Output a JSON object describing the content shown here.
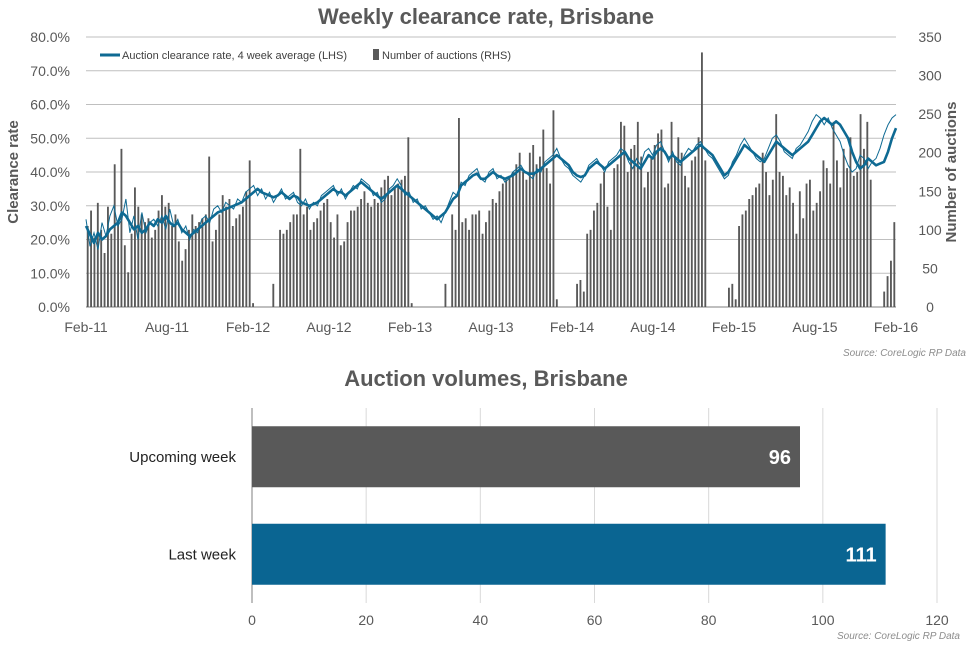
{
  "chart_data": [
    {
      "type": "bar+line",
      "title": "Weekly clearance rate, Brisbane",
      "ylabel_left": "Clearance rate",
      "ylabel_right": "Number of auctions",
      "ylim_left": [
        0,
        80
      ],
      "ylim_right": [
        0,
        350
      ],
      "y_ticks_left": [
        "0.0%",
        "10.0%",
        "20.0%",
        "30.0%",
        "40.0%",
        "50.0%",
        "60.0%",
        "70.0%",
        "80.0%"
      ],
      "y_ticks_right": [
        "0",
        "50",
        "100",
        "150",
        "200",
        "250",
        "300",
        "350"
      ],
      "x_ticks": [
        "Feb-11",
        "Aug-11",
        "Feb-12",
        "Aug-12",
        "Feb-13",
        "Aug-13",
        "Feb-14",
        "Aug-14",
        "Feb-15",
        "Aug-15",
        "Feb-16"
      ],
      "legend": [
        "Auction clearance rate, 4 week average (LHS)",
        "Number of auctions (RHS)"
      ],
      "legend_position": "top-left",
      "series_bars_auctions_rhs": [
        105,
        125,
        90,
        135,
        100,
        70,
        130,
        95,
        185,
        110,
        205,
        80,
        45,
        95,
        155,
        130,
        120,
        110,
        115,
        90,
        100,
        125,
        145,
        130,
        135,
        105,
        120,
        85,
        60,
        75,
        100,
        120,
        105,
        110,
        115,
        120,
        195,
        85,
        100,
        120,
        145,
        130,
        140,
        105,
        115,
        120,
        130,
        150,
        190,
        5,
        0,
        0,
        0,
        0,
        0,
        30,
        0,
        100,
        95,
        100,
        110,
        120,
        120,
        205,
        120,
        130,
        100,
        110,
        115,
        125,
        135,
        140,
        110,
        90,
        120,
        80,
        85,
        110,
        125,
        125,
        130,
        140,
        150,
        135,
        130,
        140,
        135,
        155,
        165,
        170,
        145,
        155,
        160,
        165,
        170,
        220,
        5,
        0,
        0,
        0,
        0,
        0,
        0,
        0,
        0,
        0,
        30,
        0,
        120,
        100,
        245,
        110,
        115,
        100,
        120,
        120,
        125,
        95,
        110,
        125,
        140,
        135,
        150,
        160,
        165,
        170,
        175,
        185,
        200,
        175,
        165,
        200,
        210,
        185,
        195,
        230,
        180,
        160,
        255,
        10,
        0,
        0,
        0,
        0,
        0,
        30,
        35,
        20,
        95,
        100,
        125,
        135,
        160,
        175,
        130,
        100,
        180,
        185,
        240,
        235,
        175,
        205,
        210,
        240,
        195,
        155,
        175,
        195,
        210,
        225,
        230,
        155,
        160,
        240,
        195,
        220,
        200,
        170,
        155,
        190,
        195,
        220,
        330,
        190,
        0,
        0,
        0,
        0,
        0,
        0,
        25,
        30,
        10,
        105,
        120,
        125,
        140,
        145,
        155,
        160,
        200,
        175,
        145,
        165,
        250,
        175,
        170,
        145,
        155,
        135,
        95,
        150,
        115,
        160,
        165,
        125,
        135,
        150,
        190,
        180,
        160,
        240,
        190,
        155,
        205,
        180,
        220,
        170,
        175,
        250,
        205,
        240,
        165,
        0,
        0,
        0,
        20,
        40,
        60,
        110
      ],
      "series_line_clearance_lhs": [
        24,
        21.5,
        19,
        22,
        20,
        21,
        23,
        24,
        25,
        28,
        27,
        25,
        23,
        24,
        22,
        23,
        25,
        24,
        26,
        25,
        27,
        25,
        24,
        25,
        23,
        22,
        21,
        22,
        23,
        24,
        25,
        26,
        27,
        28,
        28.5,
        29,
        29.5,
        30,
        30.5,
        31,
        32,
        33,
        34,
        35,
        34,
        33.5,
        33,
        32.5,
        33,
        34,
        33,
        32,
        33,
        32.5,
        31,
        30.5,
        30,
        30.5,
        31,
        32,
        33,
        34,
        35,
        34,
        34,
        33,
        34,
        35,
        36,
        37,
        36,
        35,
        34,
        33,
        32,
        33,
        34,
        35,
        36,
        35,
        34,
        33,
        32,
        31,
        30,
        29,
        28,
        27,
        26,
        27,
        28,
        30,
        32,
        33,
        36,
        37,
        38,
        39,
        39.5,
        38,
        38,
        39,
        40,
        39,
        38.5,
        38,
        38.5,
        39,
        40,
        41,
        40,
        39.5,
        39.5,
        40,
        41,
        42,
        43,
        44,
        45,
        44,
        43,
        42,
        40,
        39,
        38.5,
        39,
        41,
        42,
        43,
        42,
        41,
        42,
        43,
        44,
        45,
        46,
        44,
        43,
        42,
        41,
        43,
        45,
        44,
        46,
        47,
        46,
        44,
        45,
        44,
        43,
        44,
        45,
        46,
        47,
        48,
        47,
        46,
        45,
        43,
        41,
        39,
        40,
        42,
        44,
        46,
        48,
        47,
        46,
        45,
        44,
        43,
        45,
        47,
        49,
        48,
        47,
        46,
        45,
        46,
        47,
        48,
        49,
        51,
        53,
        55,
        56,
        55,
        54,
        55,
        54,
        52,
        50,
        46,
        43,
        41,
        42,
        44,
        43,
        42,
        42.5,
        43,
        46,
        50,
        53
      ],
      "series_line_clearance_weekly_lhs": [
        26,
        18,
        22,
        17,
        25,
        21,
        27,
        30,
        24,
        26,
        32,
        22,
        27,
        20,
        28,
        22,
        25,
        26,
        24,
        27,
        23,
        29,
        24,
        26,
        22,
        24,
        20,
        23,
        22,
        26,
        27,
        25,
        29,
        30,
        28,
        31,
        30,
        29,
        32,
        31,
        34,
        35,
        36,
        33,
        35,
        32,
        34,
        31,
        33,
        35,
        32,
        33,
        34,
        31,
        30,
        32,
        29,
        31,
        30,
        33,
        34,
        35,
        36,
        33,
        35,
        32,
        34,
        36,
        35,
        38,
        37,
        36,
        33,
        34,
        31,
        32,
        35,
        36,
        38,
        36,
        33,
        34,
        31,
        32,
        29,
        30,
        28,
        26,
        27,
        25,
        28,
        31,
        34,
        33,
        37,
        36,
        39,
        40,
        41,
        38,
        37,
        40,
        41,
        38,
        39,
        37,
        38,
        40,
        41,
        42,
        40,
        39,
        38,
        41,
        40,
        43,
        44,
        45,
        47,
        44,
        42,
        41,
        39,
        38,
        37,
        39,
        42,
        43,
        44,
        42,
        40,
        43,
        44,
        45,
        47,
        46,
        43,
        41,
        44,
        42,
        46,
        47,
        45,
        48,
        49,
        46,
        43,
        46,
        43,
        42,
        45,
        47,
        46,
        48,
        49,
        47,
        45,
        44,
        42,
        40,
        38,
        39,
        43,
        45,
        48,
        50,
        48,
        46,
        44,
        43,
        44,
        47,
        50,
        51,
        49,
        46,
        45,
        44,
        47,
        48,
        50,
        52,
        55,
        57,
        56,
        54,
        56,
        53,
        51,
        49,
        45,
        42,
        40,
        41,
        45,
        44,
        41,
        43,
        44,
        47,
        51,
        54,
        56,
        57
      ]
    },
    {
      "type": "bar",
      "orientation": "horizontal",
      "title": "Auction volumes, Brisbane",
      "categories": [
        "Upcoming week",
        "Last week"
      ],
      "values": [
        96,
        111
      ],
      "data_labels": [
        "96",
        "111"
      ],
      "xlim": [
        0,
        120
      ],
      "x_ticks": [
        "0",
        "20",
        "40",
        "60",
        "80",
        "100",
        "120"
      ],
      "colors": [
        "#595959",
        "#0a6592"
      ]
    }
  ],
  "source_top": "Source: CoreLogic  RP Data",
  "source_bottom": "Source: CoreLogic  RP Data",
  "colors": {
    "line": "#0e6a93",
    "bars": "#595959",
    "grid": "#bfbfbf"
  }
}
